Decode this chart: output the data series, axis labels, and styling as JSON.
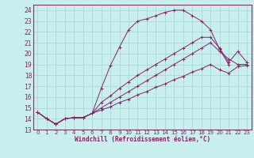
{
  "xlabel": "Windchill (Refroidissement éolien,°C)",
  "background_color": "#c8eeee",
  "grid_color": "#a8d8d8",
  "line_color": "#882266",
  "spine_color": "#7a3a6a",
  "xlim": [
    -0.5,
    23.5
  ],
  "ylim": [
    13,
    24.5
  ],
  "xticks": [
    0,
    1,
    2,
    3,
    4,
    5,
    6,
    7,
    8,
    9,
    10,
    11,
    12,
    13,
    14,
    15,
    16,
    17,
    18,
    19,
    20,
    21,
    22,
    23
  ],
  "yticks": [
    13,
    14,
    15,
    16,
    17,
    18,
    19,
    20,
    21,
    22,
    23,
    24
  ],
  "lines": [
    {
      "x": [
        0,
        1,
        2,
        3,
        4,
        5,
        6,
        7,
        8,
        9,
        10,
        11,
        12,
        13,
        14,
        15,
        16,
        17,
        18,
        19,
        20,
        21
      ],
      "y": [
        14.6,
        14.0,
        13.5,
        14.0,
        14.1,
        14.1,
        14.5,
        16.8,
        18.9,
        20.6,
        22.2,
        23.0,
        23.2,
        23.5,
        23.8,
        24.0,
        24.0,
        23.5,
        23.0,
        22.2,
        20.4,
        19.0
      ]
    },
    {
      "x": [
        0,
        1,
        2,
        3,
        4,
        5,
        6,
        7,
        8,
        9,
        10,
        11,
        12,
        13,
        14,
        15,
        16,
        17,
        18,
        19,
        20,
        21,
        22,
        23
      ],
      "y": [
        14.6,
        14.0,
        13.5,
        14.0,
        14.1,
        14.1,
        14.5,
        15.5,
        16.1,
        16.8,
        17.4,
        18.0,
        18.5,
        19.0,
        19.5,
        20.0,
        20.5,
        21.0,
        21.5,
        21.5,
        20.5,
        19.2,
        20.2,
        19.2
      ]
    },
    {
      "x": [
        0,
        1,
        2,
        3,
        4,
        5,
        6,
        7,
        8,
        9,
        10,
        11,
        12,
        13,
        14,
        15,
        16,
        17,
        18,
        19,
        20,
        21,
        22,
        23
      ],
      "y": [
        14.6,
        14.0,
        13.5,
        14.0,
        14.1,
        14.1,
        14.5,
        15.0,
        15.5,
        16.0,
        16.5,
        17.0,
        17.5,
        18.0,
        18.5,
        19.0,
        19.5,
        20.0,
        20.5,
        21.0,
        20.2,
        19.5,
        19.0,
        19.0
      ]
    },
    {
      "x": [
        0,
        1,
        2,
        3,
        4,
        5,
        6,
        7,
        8,
        9,
        10,
        11,
        12,
        13,
        14,
        15,
        16,
        17,
        18,
        19,
        20,
        21,
        22,
        23
      ],
      "y": [
        14.6,
        14.0,
        13.5,
        14.0,
        14.1,
        14.1,
        14.5,
        14.8,
        15.1,
        15.5,
        15.8,
        16.2,
        16.5,
        16.9,
        17.2,
        17.6,
        17.9,
        18.3,
        18.6,
        19.0,
        18.5,
        18.2,
        18.8,
        18.9
      ]
    }
  ]
}
